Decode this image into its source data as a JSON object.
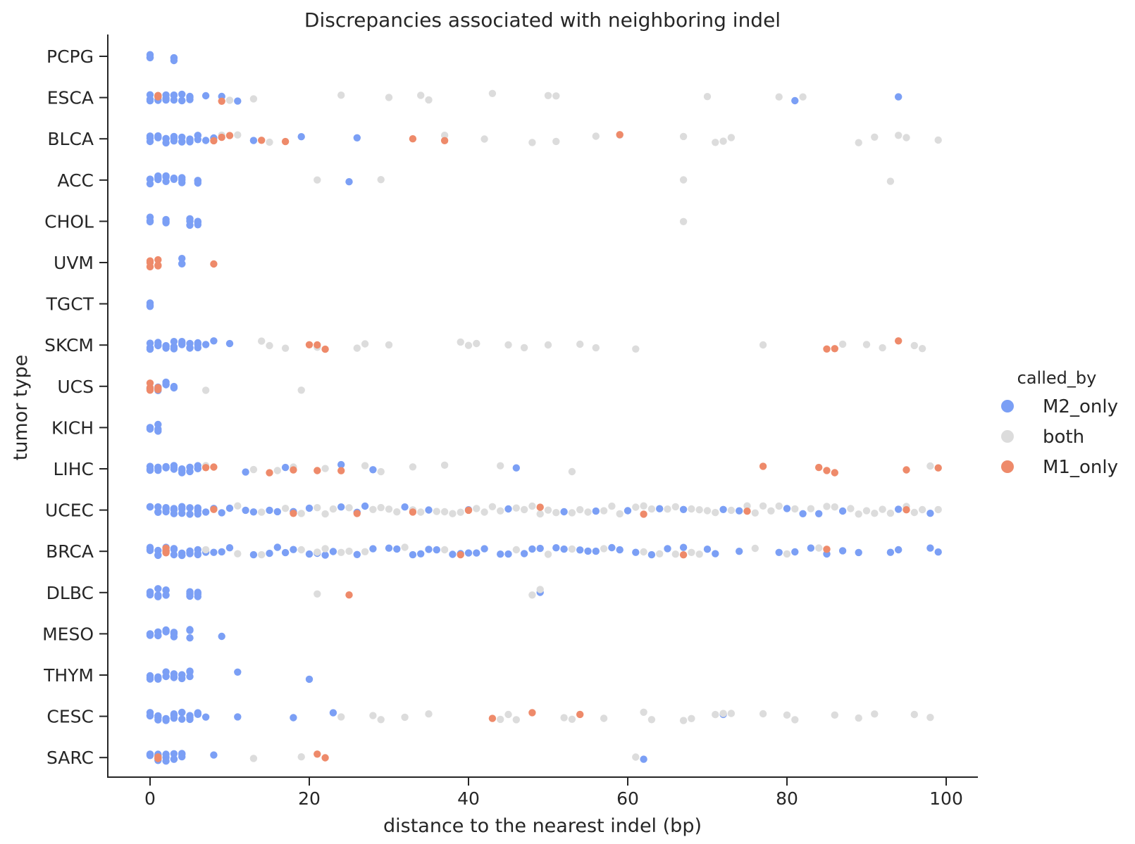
{
  "chart_data": {
    "type": "scatter",
    "title": "Discrepancies associated with neighboring indel",
    "xlabel": "distance to the nearest indel (bp)",
    "ylabel": "tumor type",
    "xlim": [
      -5.3,
      104.5
    ],
    "xticks": [
      0,
      20,
      40,
      60,
      80,
      100
    ],
    "grid": false,
    "categories": [
      "PCPG",
      "ESCA",
      "BLCA",
      "ACC",
      "CHOL",
      "UVM",
      "TGCT",
      "SKCM",
      "UCS",
      "KICH",
      "LIHC",
      "UCEC",
      "BRCA",
      "DLBC",
      "MESO",
      "THYM",
      "CESC",
      "SARC"
    ],
    "legend": {
      "title": "called_by",
      "placement": "right",
      "entries": [
        {
          "name": "M2_only",
          "color": "#7b9ff5"
        },
        {
          "name": "both",
          "color": "#dcdcdc"
        },
        {
          "name": "M1_only",
          "color": "#ee8a6a"
        }
      ]
    },
    "series": [
      {
        "name": "M2_only",
        "color": "#7b9ff5",
        "points": {
          "PCPG": [
            0,
            3
          ],
          "ESCA": [
            0,
            1,
            2,
            3,
            4,
            5,
            7,
            9,
            11,
            81,
            94
          ],
          "BLCA": [
            0,
            1,
            2,
            3,
            4,
            5,
            6,
            7,
            8,
            13,
            19,
            26
          ],
          "ACC": [
            0,
            1,
            2,
            3,
            4,
            6,
            25
          ],
          "CHOL": [
            0,
            2,
            5,
            6
          ],
          "UVM": [
            4
          ],
          "TGCT": [
            0
          ],
          "SKCM": [
            0,
            1,
            2,
            3,
            4,
            5,
            6,
            7,
            8,
            10
          ],
          "UCS": [
            0,
            1,
            2,
            3
          ],
          "KICH": [
            0,
            1
          ],
          "LIHC": [
            0,
            1,
            2,
            3,
            4,
            5,
            6,
            12,
            17,
            24,
            28,
            46
          ],
          "UCEC": [
            0,
            1,
            2,
            3,
            4,
            5,
            6,
            7,
            8,
            9,
            10,
            12,
            13,
            15,
            16,
            18,
            20,
            24,
            26,
            27,
            32,
            35,
            40,
            45,
            52,
            56,
            60,
            64,
            67,
            72,
            74,
            80,
            82,
            84,
            87,
            94,
            98
          ],
          "BRCA": [
            0,
            1,
            2,
            3,
            4,
            5,
            6,
            7,
            8,
            9,
            10,
            13,
            15,
            16,
            17,
            18,
            20,
            21,
            22,
            23,
            26,
            28,
            30,
            31,
            33,
            34,
            35,
            36,
            38,
            39,
            40,
            41,
            42,
            44,
            45,
            47,
            48,
            49,
            51,
            52,
            54,
            55,
            56,
            58,
            59,
            61,
            63,
            65,
            67,
            70,
            71,
            74,
            79,
            81,
            83,
            85,
            87,
            89,
            93,
            94,
            98,
            99
          ],
          "DLBC": [
            0,
            1,
            2,
            5,
            6,
            49
          ],
          "MESO": [
            0,
            1,
            2,
            3,
            5,
            9
          ],
          "THYM": [
            0,
            1,
            2,
            3,
            4,
            5,
            11,
            20
          ],
          "CESC": [
            0,
            1,
            2,
            3,
            4,
            5,
            6,
            7,
            11,
            18,
            23,
            72
          ],
          "SARC": [
            0,
            1,
            2,
            3,
            4,
            8,
            62
          ]
        }
      },
      {
        "name": "both",
        "color": "#dcdcdc",
        "points": {
          "ESCA": [
            10,
            13,
            24,
            30,
            34,
            35,
            43,
            50,
            51,
            70,
            79,
            82
          ],
          "BLCA": [
            9,
            11,
            15,
            37,
            42,
            48,
            51,
            56,
            59,
            67,
            71,
            72,
            73,
            89,
            91,
            94,
            95,
            99
          ],
          "ACC": [
            21,
            29,
            67,
            93
          ],
          "CHOL": [
            67
          ],
          "SKCM": [
            14,
            15,
            17,
            21,
            26,
            27,
            30,
            39,
            40,
            41,
            45,
            47,
            50,
            54,
            56,
            61,
            77,
            87,
            90,
            92,
            96,
            97
          ],
          "UCS": [
            7,
            19
          ],
          "LIHC": [
            7,
            13,
            16,
            18,
            22,
            27,
            29,
            33,
            37,
            44,
            53,
            98
          ],
          "UCEC": [
            11,
            14,
            17,
            19,
            21,
            22,
            23,
            25,
            28,
            29,
            30,
            31,
            33,
            34,
            36,
            37,
            38,
            39,
            41,
            42,
            43,
            44,
            46,
            47,
            48,
            49,
            50,
            51,
            53,
            54,
            55,
            57,
            58,
            59,
            61,
            62,
            63,
            65,
            66,
            68,
            69,
            70,
            71,
            73,
            75,
            76,
            77,
            78,
            79,
            81,
            83,
            85,
            86,
            88,
            89,
            90,
            91,
            92,
            93,
            95,
            96,
            97,
            99
          ],
          "BRCA": [
            7,
            11,
            14,
            19,
            21,
            22,
            24,
            25,
            27,
            32,
            37,
            46,
            50,
            53,
            57,
            62,
            64,
            66,
            68,
            69,
            76,
            80,
            84
          ],
          "DLBC": [
            21,
            48,
            49
          ],
          "CESC": [
            24,
            28,
            29,
            32,
            35,
            44,
            45,
            46,
            52,
            53,
            57,
            62,
            63,
            67,
            68,
            71,
            72,
            73,
            77,
            80,
            81,
            86,
            89,
            91,
            96,
            98
          ],
          "SARC": [
            13,
            19,
            61
          ]
        }
      },
      {
        "name": "M1_only",
        "color": "#ee8a6a",
        "points": {
          "ESCA": [
            1,
            9
          ],
          "BLCA": [
            8,
            9,
            10,
            14,
            17,
            33,
            37,
            59
          ],
          "UVM": [
            0,
            1,
            8
          ],
          "SKCM": [
            20,
            21,
            22,
            85,
            86,
            94
          ],
          "UCS": [
            0,
            1
          ],
          "LIHC": [
            7,
            8,
            15,
            18,
            21,
            24,
            77,
            84,
            85,
            86,
            95,
            99
          ],
          "UCEC": [
            8,
            18,
            26,
            33,
            40,
            49,
            62,
            75,
            95
          ],
          "BRCA": [
            2,
            39,
            67,
            85
          ],
          "DLBC": [
            25
          ],
          "CESC": [
            43,
            48,
            54
          ],
          "SARC": [
            1,
            21,
            22
          ]
        }
      }
    ]
  }
}
